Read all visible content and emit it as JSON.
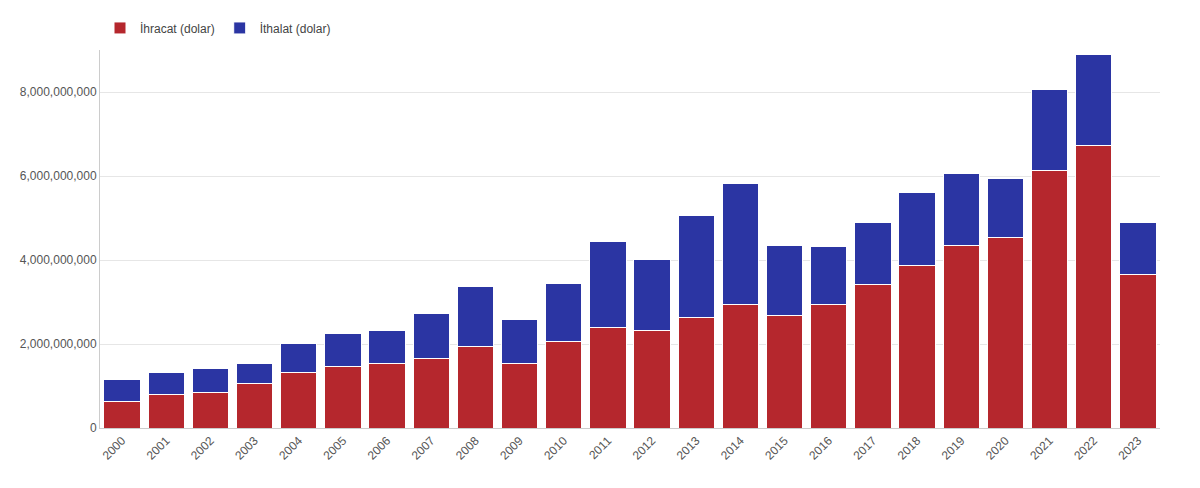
{
  "chart_data": {
    "type": "bar",
    "stacked": true,
    "grid": true,
    "legend": "top-left",
    "categories": [
      "2000",
      "2001",
      "2002",
      "2003",
      "2004",
      "2005",
      "2006",
      "2007",
      "2008",
      "2009",
      "2010",
      "2011",
      "2012",
      "2013",
      "2014",
      "2015",
      "2016",
      "2017",
      "2018",
      "2019",
      "2020",
      "2021",
      "2022",
      "2023"
    ],
    "series": [
      {
        "name": "İhracat (dolar)",
        "color": "#b5272d",
        "values": [
          635000000,
          800000000,
          850000000,
          1060000000,
          1320000000,
          1460000000,
          1530000000,
          1650000000,
          1930000000,
          1530000000,
          2070000000,
          2400000000,
          2330000000,
          2640000000,
          2940000000,
          2680000000,
          2940000000,
          3410000000,
          3880000000,
          4350000000,
          4540000000,
          6120000000,
          6730000000,
          3650000000
        ]
      },
      {
        "name": "İthalat (dolar)",
        "color": "#2b35a3",
        "values": [
          520000000,
          520000000,
          560000000,
          470000000,
          700000000,
          800000000,
          780000000,
          1080000000,
          1430000000,
          1060000000,
          1370000000,
          2050000000,
          1690000000,
          2420000000,
          2870000000,
          1670000000,
          1390000000,
          1480000000,
          1720000000,
          1720000000,
          1410000000,
          1950000000,
          2160000000,
          1240000000
        ]
      }
    ],
    "ylim": [
      0,
      9000000000
    ],
    "yticks": [
      0,
      {
        "value": 2000000000,
        "label": "2,000,000,000"
      },
      {
        "value": 4000000000,
        "label": "4,000,000,000"
      },
      {
        "value": 6000000000,
        "label": "6,000,000,000"
      },
      {
        "value": 8000000000,
        "label": "8,000,000,000"
      }
    ]
  }
}
